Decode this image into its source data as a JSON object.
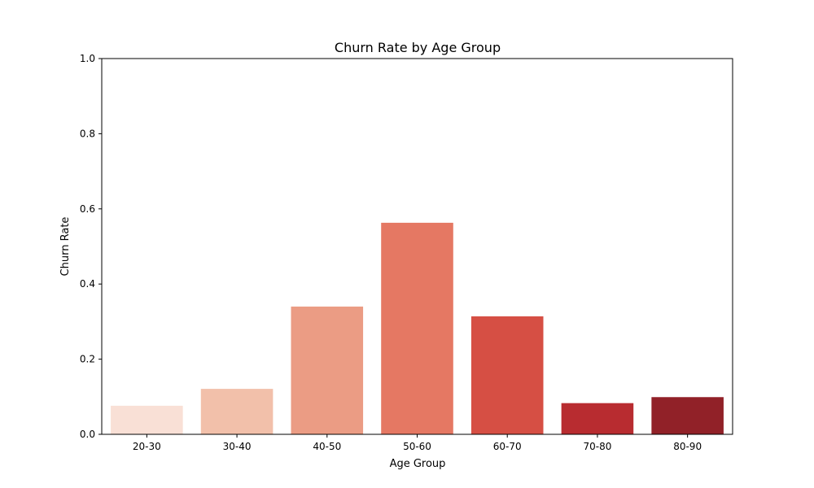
{
  "chart_data": {
    "type": "bar",
    "title": "Churn Rate by Age Group",
    "xlabel": "Age Group",
    "ylabel": "Churn Rate",
    "categories": [
      "20-30",
      "30-40",
      "40-50",
      "50-60",
      "60-70",
      "70-80",
      "80-90"
    ],
    "values": [
      0.076,
      0.121,
      0.34,
      0.563,
      0.314,
      0.083,
      0.099
    ],
    "colors": [
      "#f9e0d6",
      "#f2c0aa",
      "#eb9c84",
      "#e57863",
      "#d64f44",
      "#b82c30",
      "#912128"
    ],
    "ylim": [
      0,
      1.0
    ],
    "yticks": [
      0.0,
      0.2,
      0.4,
      0.6,
      0.8,
      1.0
    ],
    "ytick_labels": [
      "0.0",
      "0.2",
      "0.4",
      "0.6",
      "0.8",
      "1.0"
    ],
    "grid": false,
    "legend": "none"
  }
}
